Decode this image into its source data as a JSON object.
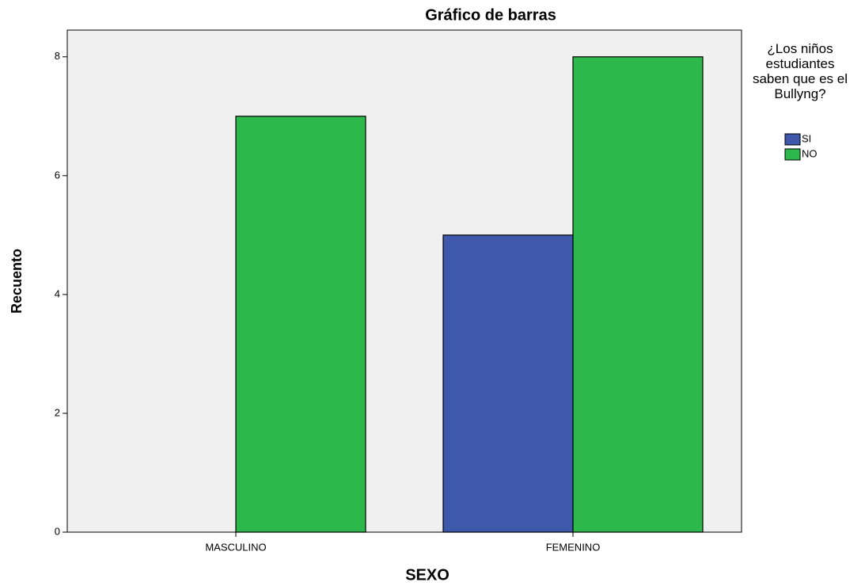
{
  "chart_data": {
    "type": "bar",
    "title": "Gráfico de barras",
    "x_label": "SEXO",
    "y_label": "Recuento",
    "legend_title": "¿Los niños estudiantes saben que es el Bullyng?",
    "categories": [
      "MASCULINO",
      "FEMENINO"
    ],
    "series": [
      {
        "name": "SI",
        "color": "#3e58ac",
        "values": [
          0,
          5
        ]
      },
      {
        "name": "NO",
        "color": "#2db84b",
        "values": [
          7,
          8
        ]
      }
    ],
    "ylim": [
      0,
      8.45
    ],
    "yticks": [
      0,
      2,
      4,
      6,
      8
    ],
    "legend": "right"
  }
}
